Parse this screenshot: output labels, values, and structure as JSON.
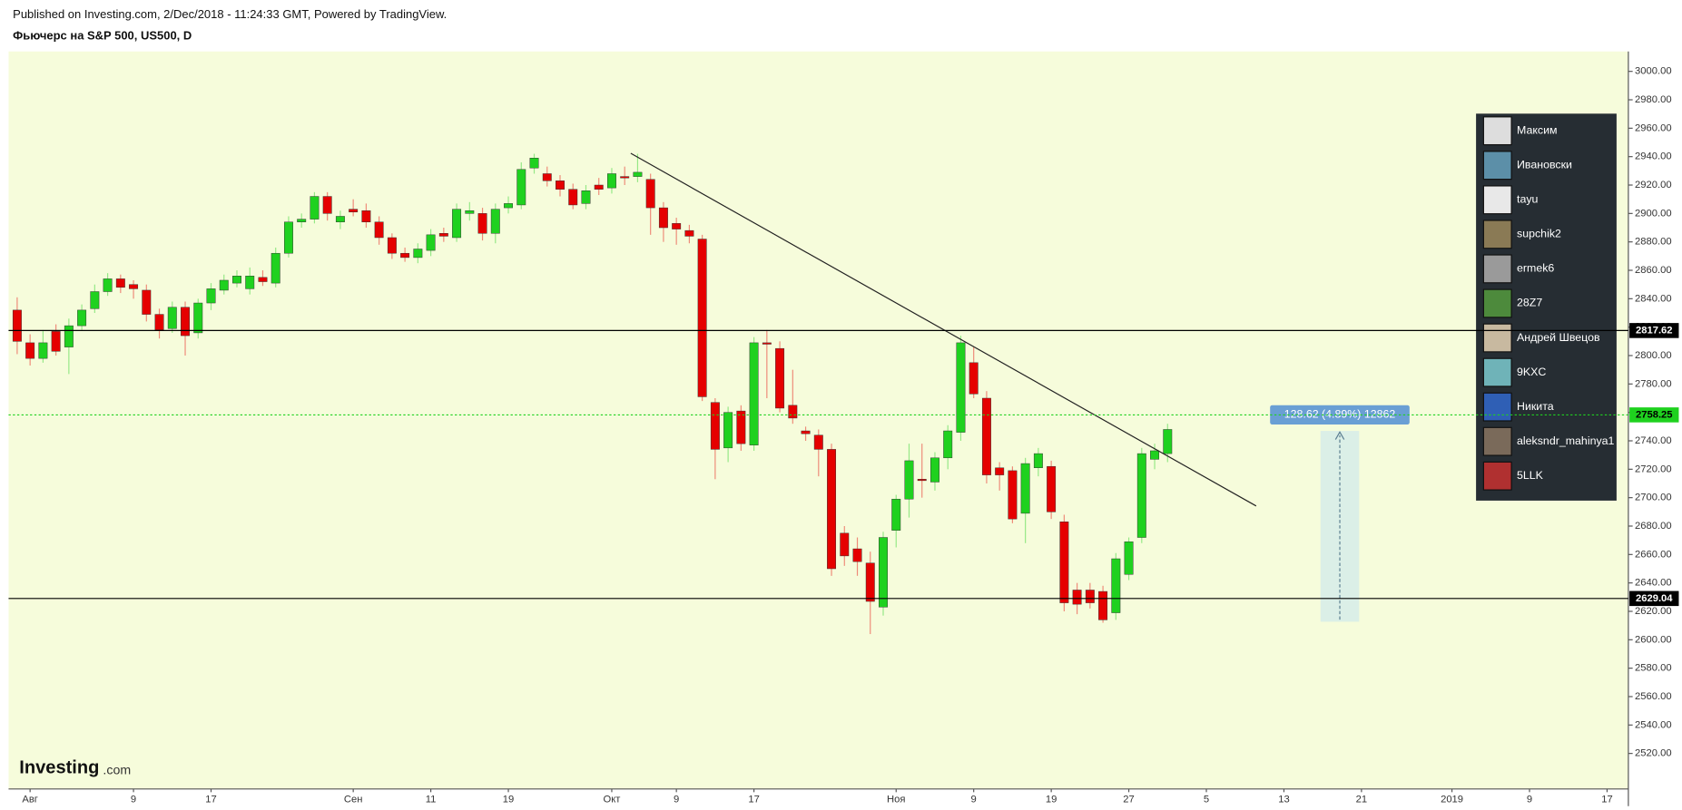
{
  "header": {
    "published": "Published on Investing.com, 2/Dec/2018 - 11:24:33 GMT, Powered by TradingView.",
    "symbol": "Фьючерс на S&P 500, US500, D"
  },
  "logo": {
    "brand": "Investing",
    "suffix": ".com"
  },
  "users": [
    "Максим",
    "Ивановски",
    "tayu",
    "supchik2",
    "ermek6",
    "28Z7",
    "Андрей Швецов",
    "9KXC",
    "Никита",
    "aleksndr_mahinya1",
    "5LLK"
  ],
  "chart_data": {
    "type": "candlestick",
    "categories": [
      null,
      "Авг",
      null,
      null,
      null,
      null,
      null,
      null,
      null,
      "9",
      null,
      null,
      null,
      null,
      null,
      "17",
      null,
      null,
      null,
      null,
      null,
      null,
      null,
      null,
      null,
      null,
      "Сен",
      null,
      null,
      null,
      null,
      null,
      "11",
      null,
      null,
      null,
      null,
      null,
      "19",
      null,
      null,
      null,
      null,
      null,
      null,
      null,
      "Окт",
      null,
      null,
      null,
      null,
      "9",
      null,
      null,
      null,
      null,
      null,
      "17",
      null,
      null,
      null,
      null,
      null,
      null,
      null,
      null,
      null,
      null,
      "Ноя",
      null,
      null,
      null,
      null,
      null,
      "9",
      null,
      null,
      null,
      null,
      null,
      "19",
      null,
      null,
      null,
      null,
      null,
      "27",
      null,
      null,
      null,
      null,
      null,
      "5",
      null,
      null,
      null,
      null,
      null,
      "13",
      null,
      null,
      null,
      null,
      null,
      "21",
      null,
      null,
      null,
      null,
      null,
      null,
      "2019",
      null,
      null,
      null,
      null,
      null,
      "9",
      null,
      null,
      null,
      null,
      null,
      "17",
      null
    ],
    "open": [
      2832,
      2809,
      2798,
      2817,
      2806,
      2821,
      2833,
      2845,
      2854,
      2850,
      2846,
      2829,
      2819,
      2834,
      2816,
      2837,
      2846,
      2851,
      2847,
      2855,
      2851,
      2872,
      2894,
      2896,
      2912,
      2894,
      2903,
      2902,
      2894,
      2883,
      2872,
      2869,
      2874,
      2886,
      2883,
      2900,
      2900,
      2886,
      2904,
      2906,
      2932,
      2928,
      2923,
      2917,
      2907,
      2920,
      2918,
      2926,
      2926,
      2924,
      2904,
      2893,
      2888,
      2882,
      2767,
      2735,
      2761,
      2737,
      2809,
      2805,
      2765,
      2747,
      2744,
      2734,
      2675,
      2664,
      2654,
      2623,
      2677,
      2699,
      2713,
      2711,
      2728,
      2746,
      2795,
      2770,
      2721,
      2719,
      2689,
      2721,
      2722,
      2683,
      2635,
      2635,
      2634,
      2619,
      2646,
      2672,
      2727,
      2731,
      null,
      null,
      null,
      null,
      null,
      null,
      null,
      null,
      null,
      null,
      null,
      null,
      null,
      null,
      null,
      null,
      null,
      null,
      null,
      null,
      null,
      null,
      null,
      null,
      null,
      null,
      null,
      null,
      null,
      null,
      null,
      null,
      null,
      null,
      null
    ],
    "high": [
      2841,
      2815,
      2818,
      2822,
      2826,
      2836,
      2850,
      2858,
      2857,
      2853,
      2850,
      2833,
      2838,
      2838,
      2840,
      2851,
      2857,
      2860,
      2862,
      2860,
      2876,
      2898,
      2900,
      2915,
      2915,
      2902,
      2910,
      2907,
      2898,
      2886,
      2876,
      2879,
      2889,
      2890,
      2907,
      2908,
      2904,
      2907,
      2912,
      2936,
      2942,
      2933,
      2927,
      2921,
      2920,
      2925,
      2932,
      2933,
      2942,
      2928,
      2908,
      2897,
      2892,
      2885,
      2770,
      2764,
      2765,
      2813,
      2818,
      2810,
      2790,
      2750,
      2748,
      2738,
      2680,
      2672,
      2662,
      2676,
      2702,
      2738,
      2738,
      2732,
      2751,
      2814,
      2806,
      2775,
      2725,
      2722,
      2728,
      2735,
      2726,
      2688,
      2640,
      2640,
      2638,
      2661,
      2672,
      2735,
      2738,
      2752,
      null,
      null,
      null,
      null,
      null,
      null,
      null,
      null,
      null,
      null,
      null,
      null,
      null,
      null,
      null,
      null,
      null,
      null,
      null,
      null,
      null,
      null,
      null,
      null,
      null,
      null,
      null,
      null,
      null,
      null,
      null,
      null,
      null,
      null,
      null
    ],
    "low": [
      2801,
      2793,
      2795,
      2800,
      2787,
      2818,
      2830,
      2842,
      2844,
      2840,
      2824,
      2812,
      2816,
      2800,
      2812,
      2832,
      2843,
      2848,
      2843,
      2849,
      2848,
      2869,
      2890,
      2893,
      2895,
      2889,
      2898,
      2890,
      2878,
      2868,
      2866,
      2865,
      2870,
      2880,
      2880,
      2895,
      2881,
      2879,
      2900,
      2903,
      2928,
      2919,
      2912,
      2903,
      2903,
      2913,
      2914,
      2920,
      2922,
      2885,
      2880,
      2878,
      2879,
      2768,
      2713,
      2725,
      2733,
      2733,
      2770,
      2760,
      2752,
      2740,
      2715,
      2645,
      2652,
      2645,
      2604,
      2617,
      2665,
      2686,
      2700,
      2705,
      2720,
      2740,
      2770,
      2710,
      2705,
      2682,
      2668,
      2715,
      2685,
      2620,
      2618,
      2622,
      2612,
      2614,
      2642,
      2668,
      2720,
      2725,
      null,
      null,
      null,
      null,
      null,
      null,
      null,
      null,
      null,
      null,
      null,
      null,
      null,
      null,
      null,
      null,
      null,
      null,
      null,
      null,
      null,
      null,
      null,
      null,
      null,
      null,
      null,
      null,
      null,
      null,
      null,
      null,
      null,
      null,
      null
    ],
    "close": [
      2810,
      2798,
      2809,
      2803,
      2821,
      2832,
      2845,
      2854,
      2848,
      2847,
      2829,
      2818,
      2834,
      2814,
      2837,
      2847,
      2853,
      2856,
      2856,
      2852,
      2872,
      2894,
      2896,
      2912,
      2900,
      2898,
      2901,
      2894,
      2883,
      2872,
      2869,
      2875,
      2885,
      2884,
      2903,
      2902,
      2886,
      2903,
      2907,
      2931,
      2939,
      2923,
      2917,
      2906,
      2916,
      2917,
      2928,
      2925,
      2929,
      2904,
      2890,
      2889,
      2884,
      2771,
      2734,
      2760,
      2738,
      2809,
      2808,
      2763,
      2756,
      2745,
      2734,
      2650,
      2659,
      2655,
      2627,
      2672,
      2699,
      2726,
      2712,
      2728,
      2747,
      2809,
      2773,
      2716,
      2716,
      2685,
      2724,
      2731,
      2690,
      2626,
      2625,
      2626,
      2614,
      2657,
      2669,
      2731,
      2733,
      2748,
      null,
      null,
      null,
      null,
      null,
      null,
      null,
      null,
      null,
      null,
      null,
      null,
      null,
      null,
      null,
      null,
      null,
      null,
      null,
      null,
      null,
      null,
      null,
      null,
      null,
      null,
      null,
      null,
      null,
      null,
      null,
      null,
      null,
      null,
      null
    ],
    "up_color": "#1fd11f",
    "down_color": "#e50000",
    "ylim": [
      2495,
      3014
    ],
    "yticks": [
      {
        "value": 2520,
        "label": "2520.00"
      },
      {
        "value": 2540,
        "label": "2540.00"
      },
      {
        "value": 2560,
        "label": "2560.00"
      },
      {
        "value": 2580,
        "label": "2580.00"
      },
      {
        "value": 2600,
        "label": "2600.00"
      },
      {
        "value": 2620,
        "label": "2620.00"
      },
      {
        "value": 2640,
        "label": "2640.00"
      },
      {
        "value": 2660,
        "label": "2660.00"
      },
      {
        "value": 2680,
        "label": "2680.00"
      },
      {
        "value": 2700,
        "label": "2700.00"
      },
      {
        "value": 2720,
        "label": "2720.00"
      },
      {
        "value": 2740,
        "label": "2740.00"
      },
      {
        "value": 2760,
        "label": "2760.00"
      },
      {
        "value": 2780,
        "label": "2780.00"
      },
      {
        "value": 2800,
        "label": "2800.00"
      },
      {
        "value": 2820,
        "label": "2820.00"
      },
      {
        "value": 2840,
        "label": "2840.00"
      },
      {
        "value": 2860,
        "label": "2860.00"
      },
      {
        "value": 2880,
        "label": "2880.00"
      },
      {
        "value": 2900,
        "label": "2900.00"
      },
      {
        "value": 2920,
        "label": "2920.00"
      },
      {
        "value": 2940,
        "label": "2940.00"
      },
      {
        "value": 2960,
        "label": "2960.00"
      },
      {
        "value": 2980,
        "label": "2980.00"
      },
      {
        "value": 3000,
        "label": "3000.00"
      }
    ],
    "hlines": [
      2817.62,
      2629.04
    ],
    "last_price": 2758.25,
    "measure_label": "128.62 (4.89%) 12862"
  }
}
